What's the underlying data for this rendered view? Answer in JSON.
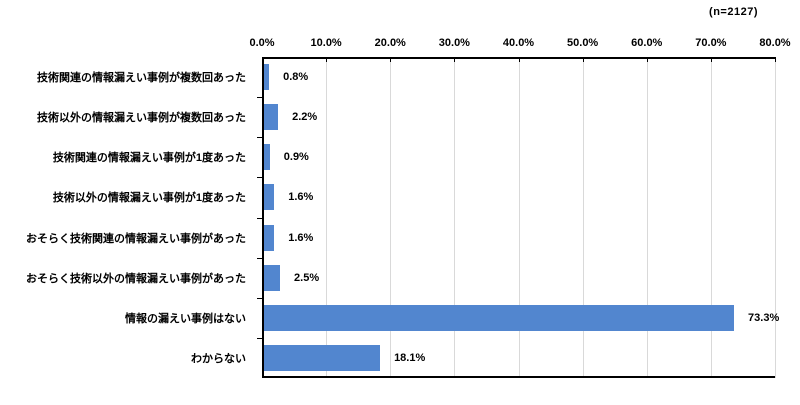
{
  "annotation": "(n=2127)",
  "chart_data": {
    "type": "bar",
    "orientation": "horizontal",
    "title": "",
    "annotation": "(n=2127)",
    "categories": [
      "技術関連の情報漏えい事例が複数回あった",
      "技術以外の情報漏えい事例が複数回あった",
      "技術関連の情報漏えい事例が1度あった",
      "技術以外の情報漏えい事例が1度あった",
      "おそらく技術関連の情報漏えい事例があった",
      "おそらく技術以外の情報漏えい事例があった",
      "情報の漏えい事例はない",
      "わからない"
    ],
    "values": [
      0.8,
      2.2,
      0.9,
      1.6,
      1.6,
      2.5,
      73.3,
      18.1
    ],
    "value_labels": [
      "0.8%",
      "2.2%",
      "0.9%",
      "1.6%",
      "1.6%",
      "2.5%",
      "73.3%",
      "18.1%"
    ],
    "x_ticks": [
      "0.0%",
      "10.0%",
      "20.0%",
      "30.0%",
      "40.0%",
      "50.0%",
      "60.0%",
      "70.0%",
      "80.0%"
    ],
    "x_tick_values": [
      0,
      10,
      20,
      30,
      40,
      50,
      60,
      70,
      80
    ],
    "xlim": [
      0,
      80
    ],
    "grid": true,
    "legend": false,
    "colors": {
      "bar": "#5286cf",
      "gridline": "#d9d9d9",
      "axis": "#000000",
      "text": "#000000",
      "background": "#ffffff"
    }
  }
}
